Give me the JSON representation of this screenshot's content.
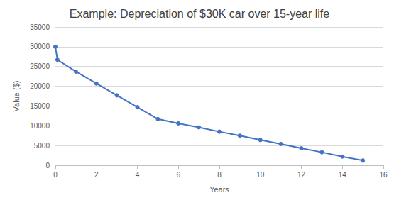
{
  "chart_data": {
    "type": "line",
    "title": "Example: Depreciation of $30K car over 15-year life",
    "x_label": "Years",
    "y_label": "Value ($)",
    "x": [
      0,
      0.1,
      1,
      2,
      3,
      4,
      5,
      6,
      7,
      8,
      9,
      10,
      11,
      12,
      13,
      14,
      15
    ],
    "values": [
      30000,
      26700,
      23700,
      20700,
      17700,
      14700,
      11700,
      10600,
      9600,
      8500,
      7500,
      6400,
      5400,
      4300,
      3300,
      2200,
      1200
    ],
    "color": "#4472c4",
    "marker": "circle",
    "line_style": "solid",
    "xlim": [
      0,
      16
    ],
    "xticks": [
      0,
      2,
      4,
      6,
      8,
      10,
      12,
      14,
      16
    ],
    "ylim": [
      0,
      35000
    ],
    "yticks": [
      0,
      5000,
      10000,
      15000,
      20000,
      25000,
      30000,
      35000
    ],
    "grid": true
  }
}
